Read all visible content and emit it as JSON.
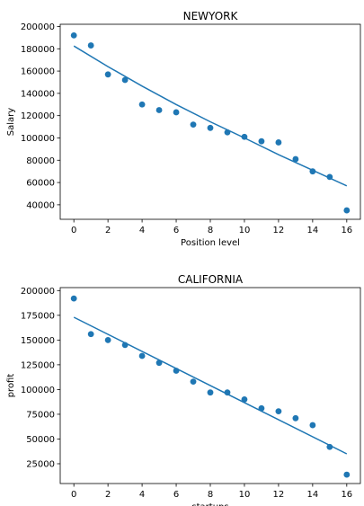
{
  "colors": {
    "point": "#1f77b4",
    "line": "#1f77b4",
    "axis": "#000000",
    "background": "#ffffff"
  },
  "chart_data": [
    {
      "type": "scatter",
      "title": "NEWYORK",
      "xlabel": "Position level",
      "ylabel": "Salary",
      "xlim": [
        -0.8,
        16.8
      ],
      "ylim": [
        27000,
        202000
      ],
      "xticks": [
        0,
        2,
        4,
        6,
        8,
        10,
        12,
        14,
        16
      ],
      "yticks": [
        40000,
        60000,
        80000,
        100000,
        120000,
        140000,
        160000,
        180000,
        200000
      ],
      "grid": false,
      "series": [
        {
          "kind": "points",
          "x": [
            0,
            1,
            2,
            3,
            4,
            5,
            6,
            7,
            8,
            9,
            10,
            11,
            12,
            13,
            14,
            15,
            16
          ],
          "y": [
            192000,
            183000,
            157000,
            152000,
            130000,
            125000,
            123000,
            112000,
            109000,
            105000,
            101000,
            97000,
            96000,
            81000,
            70000,
            65000,
            35000
          ]
        },
        {
          "kind": "line",
          "x": [
            0,
            2,
            4,
            6,
            8,
            10,
            12,
            14,
            16
          ],
          "y": [
            182500,
            164000,
            146500,
            130000,
            114500,
            100000,
            85000,
            71000,
            57000
          ]
        }
      ]
    },
    {
      "type": "scatter",
      "title": "CALIFORNIA",
      "xlabel": "startups",
      "ylabel": "profit",
      "xlim": [
        -0.8,
        16.8
      ],
      "ylim": [
        5000,
        203000
      ],
      "xticks": [
        0,
        2,
        4,
        6,
        8,
        10,
        12,
        14,
        16
      ],
      "yticks": [
        25000,
        50000,
        75000,
        100000,
        125000,
        150000,
        175000,
        200000
      ],
      "grid": false,
      "series": [
        {
          "kind": "points",
          "x": [
            0,
            1,
            2,
            3,
            4,
            5,
            6,
            7,
            8,
            9,
            10,
            11,
            12,
            13,
            14,
            15,
            16
          ],
          "y": [
            192000,
            156000,
            150000,
            145000,
            134000,
            127000,
            119000,
            108000,
            97000,
            97000,
            90000,
            81000,
            78000,
            71000,
            64000,
            42000,
            14000
          ]
        },
        {
          "kind": "line",
          "x": [
            0,
            16
          ],
          "y": [
            173000,
            35000
          ]
        }
      ]
    }
  ]
}
